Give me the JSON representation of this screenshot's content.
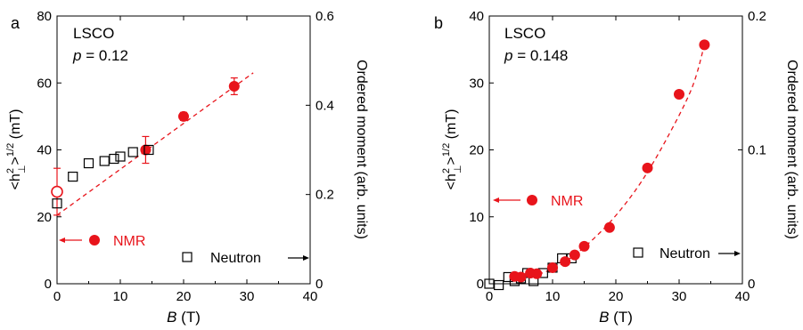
{
  "chart_data": [
    {
      "type": "scatter",
      "panel_label": "a",
      "material_label": "LSCO",
      "doping_prefix": "p",
      "doping_value": " = 0.12",
      "xlabel_var": "B",
      "xlabel_unit": " (T)",
      "ylabel_left_main": "<h",
      "ylabel_left_tail": ">",
      "ylabel_left_sup": "1/2",
      "ylabel_left_unit": " (mT)",
      "ylabel_right": "Ordered moment (arb. units)",
      "xlim": [
        0,
        40
      ],
      "ylim_left": [
        0,
        80
      ],
      "ylim_right": [
        0,
        0.6
      ],
      "x_ticks": [
        "0",
        "10",
        "20",
        "30",
        "40"
      ],
      "y_ticks_left": [
        "0",
        "20",
        "40",
        "60",
        "80"
      ],
      "y_ticks_right": [
        "0",
        "0.2",
        "0.4",
        "0.6"
      ],
      "legend": {
        "nmr": "NMR",
        "neutron": "Neutron"
      },
      "nmr_color": "#e8141b",
      "series": [
        {
          "name": "NMR",
          "axis": "left",
          "points": [
            {
              "x": 0,
              "y": 27.5,
              "err": 7,
              "open": true
            },
            {
              "x": 14,
              "y": 40,
              "err": 4,
              "open": false
            },
            {
              "x": 20,
              "y": 50,
              "err": 1.2,
              "open": false
            },
            {
              "x": 28,
              "y": 59,
              "err": 2.5,
              "open": false
            }
          ]
        },
        {
          "name": "Neutron",
          "axis": "right",
          "points": [
            {
              "x": 0,
              "y": 0.18
            },
            {
              "x": 2.5,
              "y": 0.24
            },
            {
              "x": 5,
              "y": 0.27
            },
            {
              "x": 7.5,
              "y": 0.275
            },
            {
              "x": 9,
              "y": 0.28
            },
            {
              "x": 10,
              "y": 0.285
            },
            {
              "x": 12,
              "y": 0.295
            },
            {
              "x": 14.5,
              "y": 0.3
            }
          ]
        }
      ],
      "fit_line": [
        [
          0,
          20.5
        ],
        [
          31,
          63
        ]
      ]
    },
    {
      "type": "scatter",
      "panel_label": "b",
      "material_label": "LSCO",
      "doping_prefix": "p",
      "doping_value": " = 0.148",
      "xlabel_var": "B",
      "xlabel_unit": " (T)",
      "ylabel_left_main": "<h",
      "ylabel_left_tail": ">",
      "ylabel_left_sup": "1/2",
      "ylabel_left_unit": " (mT)",
      "ylabel_right": "Ordered moment (arb. units)",
      "xlim": [
        0,
        40
      ],
      "ylim_left": [
        0,
        40
      ],
      "ylim_right": [
        0,
        0.2
      ],
      "x_ticks": [
        "0",
        "10",
        "20",
        "30",
        "40"
      ],
      "y_ticks_left": [
        "0",
        "10",
        "20",
        "30",
        "40"
      ],
      "y_ticks_right": [
        "0",
        "0.1",
        "0.2"
      ],
      "legend": {
        "nmr": "NMR",
        "neutron": "Neutron"
      },
      "nmr_color": "#e8141b",
      "series": [
        {
          "name": "NMR",
          "axis": "left",
          "points": [
            {
              "x": 4,
              "y": 1.1
            },
            {
              "x": 5,
              "y": 1.0
            },
            {
              "x": 6.5,
              "y": 1.6
            },
            {
              "x": 7.5,
              "y": 1.5
            },
            {
              "x": 10,
              "y": 2.4
            },
            {
              "x": 12,
              "y": 3.3
            },
            {
              "x": 13.5,
              "y": 4.3
            },
            {
              "x": 15,
              "y": 5.6
            },
            {
              "x": 19,
              "y": 8.4
            },
            {
              "x": 25,
              "y": 17.3
            },
            {
              "x": 30,
              "y": 28.3
            },
            {
              "x": 34,
              "y": 35.7
            }
          ]
        },
        {
          "name": "Neutron",
          "axis": "right",
          "points": [
            {
              "x": 0,
              "y": 0.0
            },
            {
              "x": 1.5,
              "y": -0.001
            },
            {
              "x": 3,
              "y": 0.005
            },
            {
              "x": 4,
              "y": 0.002
            },
            {
              "x": 5,
              "y": 0.004
            },
            {
              "x": 6,
              "y": 0.008
            },
            {
              "x": 7,
              "y": 0.002
            },
            {
              "x": 8.5,
              "y": 0.008
            },
            {
              "x": 10,
              "y": 0.012
            },
            {
              "x": 11.5,
              "y": 0.019
            },
            {
              "x": 13,
              "y": 0.019
            }
          ]
        }
      ],
      "fit_curve": [
        [
          4,
          1.0
        ],
        [
          8,
          1.5
        ],
        [
          12,
          3.3
        ],
        [
          16,
          6.3
        ],
        [
          20,
          10.2
        ],
        [
          24,
          15.2
        ],
        [
          28,
          21.6
        ],
        [
          32,
          29.2
        ],
        [
          34,
          35.7
        ]
      ]
    }
  ]
}
